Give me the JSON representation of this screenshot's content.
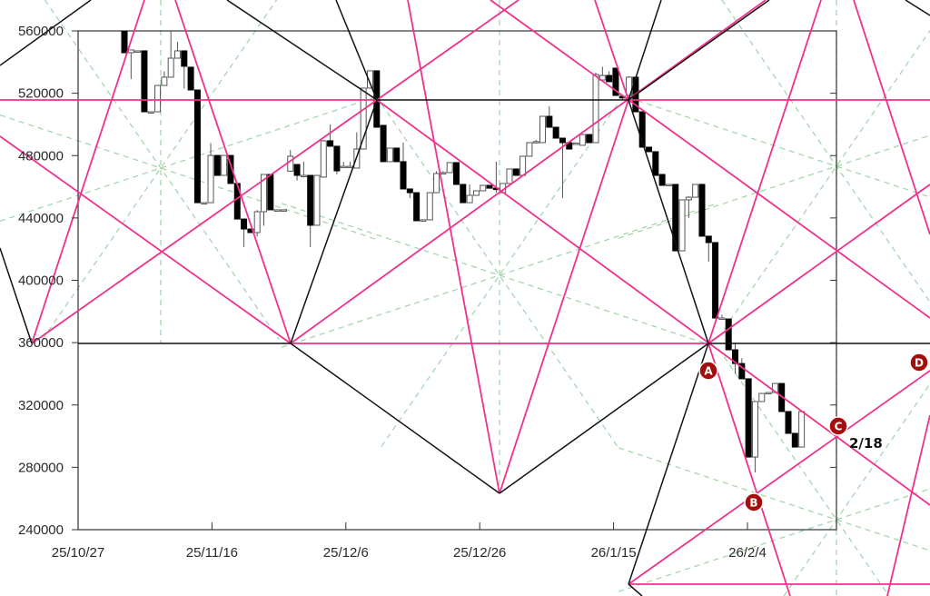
{
  "chart_data": {
    "type": "candlestick",
    "title": "",
    "xlabel": "",
    "ylabel": "",
    "ylim": [
      240000,
      560000
    ],
    "y_ticks": [
      "560000",
      "520000",
      "480000",
      "440000",
      "400000",
      "360000",
      "320000",
      "280000",
      "240000"
    ],
    "y_tick_values": [
      560000,
      520000,
      480000,
      440000,
      400000,
      360000,
      320000,
      280000,
      240000
    ],
    "x_ticks": [
      "25/10/27",
      "25/11/16",
      "25/12/6",
      "25/12/26",
      "26/1/15",
      "26/2/4"
    ],
    "x_tick_bars": [
      0,
      20,
      40,
      60,
      80,
      100
    ],
    "x_end_label": "2/18",
    "grid": false,
    "colors": {
      "overlay_pink": "#f0318c",
      "overlay_black": "#111111",
      "guide_green": "#9fd3a5",
      "marker": "#a50d0d",
      "bear_body": "#000000",
      "bull_body": "#ffffff"
    },
    "candles_ohlc": [
      [
        560000,
        560000,
        546000,
        546000
      ],
      [
        546000,
        548000,
        529100,
        547800
      ],
      [
        547200,
        547200,
        547200,
        547200
      ],
      [
        547200,
        547200,
        508100,
        508100
      ],
      [
        508100,
        508100,
        508100,
        508100
      ],
      [
        508100,
        525000,
        508100,
        525000
      ],
      [
        525000,
        534000,
        525000,
        530300
      ],
      [
        530300,
        560000,
        530300,
        542500
      ],
      [
        542500,
        553000,
        542500,
        547200
      ],
      [
        547200,
        547200,
        523000,
        537300
      ],
      [
        536700,
        536700,
        522100,
        522100
      ],
      [
        522100,
        522100,
        449800,
        449800
      ],
      [
        449800,
        449800,
        449800,
        449800
      ],
      [
        449800,
        488000,
        449800,
        480100
      ],
      [
        480100,
        480100,
        467300,
        467300
      ],
      [
        467300,
        480100,
        467300,
        480100
      ],
      [
        480100,
        480100,
        462100,
        462100
      ],
      [
        462100,
        462100,
        439300,
        439300
      ],
      [
        439300,
        439300,
        421300,
        432900
      ],
      [
        432900,
        432900,
        430600,
        430600
      ],
      [
        430600,
        445000,
        428000,
        444000
      ],
      [
        444000,
        467900,
        435000,
        467900
      ],
      [
        467900,
        467900,
        445200,
        445200
      ],
      [
        445200,
        445200,
        445200,
        445200
      ],
      [
        445200,
        445200,
        445200,
        445200
      ],
      [
        470000,
        483600,
        469600,
        479600
      ],
      [
        474300,
        474300,
        464000,
        467300
      ],
      [
        467300,
        476000,
        466000,
        467300
      ],
      [
        467300,
        467300,
        421300,
        435300
      ],
      [
        435300,
        467300,
        435300,
        467300
      ],
      [
        466200,
        490000,
        466200,
        489500
      ],
      [
        489500,
        500000,
        486000,
        486000
      ],
      [
        486000,
        486000,
        468000,
        470200
      ],
      [
        473100,
        476000,
        473100,
        473100
      ],
      [
        473100,
        476000,
        473100,
        473100
      ],
      [
        472000,
        495000,
        472000,
        484200
      ],
      [
        484200,
        523300,
        484200,
        523300
      ],
      [
        523300,
        534400,
        523300,
        534400
      ],
      [
        534400,
        534400,
        498200,
        498200
      ],
      [
        499400,
        499400,
        476100,
        476100
      ],
      [
        476100,
        484800,
        476100,
        484800
      ],
      [
        484800,
        484800,
        476100,
        476100
      ],
      [
        476100,
        488300,
        458600,
        458600
      ],
      [
        458600,
        458600,
        452700,
        456200
      ],
      [
        456200,
        456200,
        438200,
        438200
      ],
      [
        438800,
        438800,
        438800,
        438800
      ],
      [
        438800,
        456200,
        438800,
        456200
      ],
      [
        456200,
        470000,
        456200,
        468500
      ],
      [
        468500,
        470000,
        468000,
        469100
      ],
      [
        469100,
        475500,
        469100,
        475500
      ],
      [
        475500,
        475500,
        461500,
        461500
      ],
      [
        461500,
        461500,
        449800,
        449800
      ],
      [
        449800,
        461500,
        449800,
        454500
      ],
      [
        454500,
        457400,
        454500,
        457400
      ],
      [
        457400,
        460900,
        457400,
        460900
      ],
      [
        460900,
        460900,
        459100,
        459100
      ],
      [
        459100,
        476100,
        456200,
        458600
      ],
      [
        456200,
        461500,
        456200,
        462100
      ],
      [
        462100,
        471400,
        462100,
        471400
      ],
      [
        471400,
        471400,
        467300,
        467300
      ],
      [
        467300,
        479600,
        467300,
        479600
      ],
      [
        479600,
        488300,
        479600,
        488300
      ],
      [
        488300,
        490000,
        488300,
        489000
      ],
      [
        488300,
        505200,
        488300,
        505200
      ],
      [
        505200,
        511600,
        498200,
        498200
      ],
      [
        498200,
        498200,
        491200,
        491200
      ],
      [
        491200,
        491200,
        452700,
        488300
      ],
      [
        488300,
        488300,
        484200,
        484200
      ],
      [
        488000,
        488000,
        488000,
        488000
      ],
      [
        486600,
        493500,
        486600,
        493500
      ],
      [
        493500,
        493500,
        488300,
        488300
      ],
      [
        488300,
        533200,
        488300,
        532000
      ],
      [
        528500,
        537000,
        528500,
        531400
      ],
      [
        531400,
        534000,
        527400,
        527400
      ],
      [
        536100,
        536100,
        518600,
        518600
      ],
      [
        518000,
        519000,
        516000,
        517000
      ],
      [
        518600,
        531000,
        518600,
        530300
      ],
      [
        530300,
        530300,
        508100,
        508100
      ],
      [
        508100,
        508100,
        485400,
        485400
      ],
      [
        485400,
        485400,
        482500,
        482500
      ],
      [
        482500,
        482500,
        467300,
        467300
      ],
      [
        467900,
        467900,
        460900,
        460900
      ],
      [
        461500,
        461500,
        461500,
        461500
      ],
      [
        461500,
        461500,
        418900,
        418900
      ],
      [
        418900,
        451600,
        418900,
        451600
      ],
      [
        451600,
        454000,
        440000,
        453300
      ],
      [
        453300,
        461500,
        453300,
        461500
      ],
      [
        461500,
        462000,
        428300,
        428300
      ],
      [
        428300,
        428300,
        411900,
        424200
      ],
      [
        424200,
        424200,
        375800,
        375800
      ],
      [
        375800,
        378000,
        375800,
        375800
      ],
      [
        375200,
        375200,
        355400,
        355400
      ],
      [
        355400,
        360000,
        340000,
        346600
      ],
      [
        346600,
        350000,
        336800,
        336800
      ],
      [
        336800,
        336800,
        286600,
        286600
      ],
      [
        286600,
        322200,
        276700,
        322200
      ],
      [
        322200,
        327400,
        322200,
        327400
      ],
      [
        328000,
        328000,
        328000,
        328000
      ],
      [
        328000,
        333800,
        328000,
        333800
      ],
      [
        333800,
        333800,
        315800,
        315800
      ],
      [
        315800,
        315800,
        301800,
        301800
      ],
      [
        301800,
        301800,
        293000,
        293000
      ],
      [
        293000,
        315800,
        293000,
        315800
      ]
    ],
    "levels": [
      516000,
      360000
    ],
    "markers": [
      {
        "label": "A"
      },
      {
        "label": "B"
      },
      {
        "label": "C"
      },
      {
        "label": "D"
      }
    ]
  }
}
